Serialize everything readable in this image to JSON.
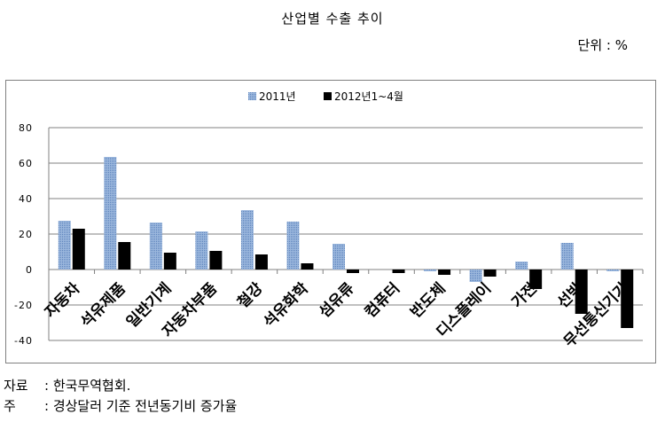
{
  "page": {
    "title": "산업별 수출 추이",
    "unit": "단위 : %",
    "source_label": "자료",
    "source_text": ": 한국무역협회.",
    "note_label": "주",
    "note_text": ": 경상달러 기준 전년동기비 증가율"
  },
  "colors": {
    "series_2011": "#9bb7dd",
    "series_2012": "#000000",
    "gridline": "#808080"
  },
  "chart_data": {
    "type": "bar",
    "title": "",
    "xlabel": "",
    "ylabel": "",
    "ylim": [
      -40,
      80
    ],
    "yticks": [
      80,
      60,
      40,
      20,
      0,
      -20,
      -40
    ],
    "grid": true,
    "legend_position": "top",
    "categories": [
      "자동차",
      "석유제품",
      "일반기계",
      "자동차부품",
      "철강",
      "석유화학",
      "섬유류",
      "컴퓨터",
      "반도체",
      "디스플레이",
      "가전",
      "선박",
      "무선통신기기"
    ],
    "series": [
      {
        "name": "2011년",
        "values": [
          27.5,
          63.5,
          26.5,
          21.5,
          33.5,
          27.0,
          14.5,
          0,
          -1,
          -7,
          4.5,
          15.0,
          -1
        ]
      },
      {
        "name": "2012년1~4월",
        "values": [
          23.0,
          15.5,
          9.5,
          10.5,
          8.5,
          3.5,
          -2.0,
          -2.0,
          -3.0,
          -4.0,
          -11.0,
          -25.0,
          -33.0
        ]
      }
    ]
  }
}
